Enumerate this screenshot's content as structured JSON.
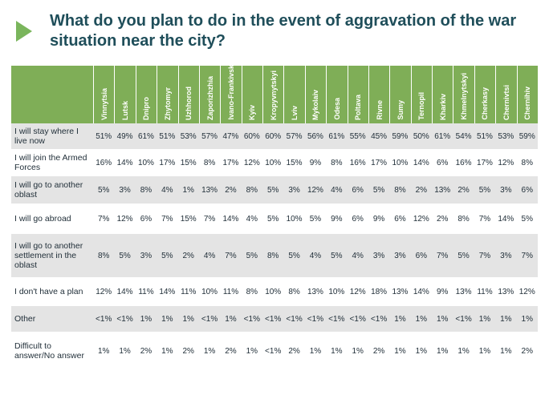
{
  "title": "What do you plan to do in the event of aggravation of the war situation near the city?",
  "colors": {
    "header_bg": "#7fae57",
    "title": "#1f4e5a",
    "accent": "#7ab55c",
    "stripe": "#e4e4e4"
  },
  "chart_data": {
    "type": "table",
    "title": "What do you plan to do in the event of aggravation of the war situation near the city?",
    "columns": [
      "Vinnytsia",
      "Lutsk",
      "Dnipro",
      "Zhytomyr",
      "Uzhhorod",
      "Zaporizhzhia",
      "Ivano-Frankivsk",
      "Kyiv",
      "Kropyvnytskyi",
      "Lviv",
      "Mykolaiv",
      "Odesa",
      "Poltava",
      "Rivne",
      "Sumy",
      "Ternopil",
      "Kharkiv",
      "Khmelnytskyi",
      "Cherkasy",
      "Chernivtsi",
      "Chernihiv"
    ],
    "rows": [
      {
        "label": "I will stay where I live now",
        "values": [
          "51%",
          "49%",
          "61%",
          "51%",
          "53%",
          "57%",
          "47%",
          "60%",
          "60%",
          "57%",
          "56%",
          "61%",
          "55%",
          "45%",
          "59%",
          "50%",
          "61%",
          "54%",
          "51%",
          "53%",
          "59%"
        ]
      },
      {
        "label": "I will join the Armed Forces",
        "values": [
          "16%",
          "14%",
          "10%",
          "17%",
          "15%",
          "8%",
          "17%",
          "12%",
          "10%",
          "15%",
          "9%",
          "8%",
          "16%",
          "17%",
          "10%",
          "14%",
          "6%",
          "16%",
          "17%",
          "12%",
          "8%"
        ]
      },
      {
        "label": "I will go to another oblast",
        "values": [
          "5%",
          "3%",
          "8%",
          "4%",
          "1%",
          "13%",
          "2%",
          "8%",
          "5%",
          "3%",
          "12%",
          "4%",
          "6%",
          "5%",
          "8%",
          "2%",
          "13%",
          "2%",
          "5%",
          "3%",
          "6%"
        ]
      },
      {
        "label": "I will go abroad",
        "values": [
          "7%",
          "12%",
          "6%",
          "7%",
          "15%",
          "7%",
          "14%",
          "4%",
          "5%",
          "10%",
          "5%",
          "9%",
          "6%",
          "9%",
          "6%",
          "12%",
          "2%",
          "8%",
          "7%",
          "14%",
          "5%"
        ]
      },
      {
        "label": "I will go to another settlement in the oblast",
        "values": [
          "8%",
          "5%",
          "3%",
          "5%",
          "2%",
          "4%",
          "7%",
          "5%",
          "8%",
          "5%",
          "4%",
          "5%",
          "4%",
          "3%",
          "3%",
          "6%",
          "7%",
          "5%",
          "7%",
          "3%",
          "7%"
        ]
      },
      {
        "label": "I don't have a plan",
        "values": [
          "12%",
          "14%",
          "11%",
          "14%",
          "11%",
          "10%",
          "11%",
          "8%",
          "10%",
          "8%",
          "13%",
          "10%",
          "12%",
          "18%",
          "13%",
          "14%",
          "9%",
          "13%",
          "11%",
          "13%",
          "12%"
        ]
      },
      {
        "label": "Other",
        "values": [
          "<1%",
          "<1%",
          "1%",
          "1%",
          "1%",
          "<1%",
          "1%",
          "<1%",
          "<1%",
          "<1%",
          "<1%",
          "<1%",
          "<1%",
          "<1%",
          "1%",
          "1%",
          "1%",
          "<1%",
          "1%",
          "1%",
          "1%"
        ]
      },
      {
        "label": "Difficult to answer/No answer",
        "values": [
          "1%",
          "1%",
          "2%",
          "1%",
          "2%",
          "1%",
          "2%",
          "1%",
          "<1%",
          "2%",
          "1%",
          "1%",
          "1%",
          "2%",
          "1%",
          "1%",
          "1%",
          "1%",
          "1%",
          "1%",
          "2%"
        ]
      }
    ]
  }
}
